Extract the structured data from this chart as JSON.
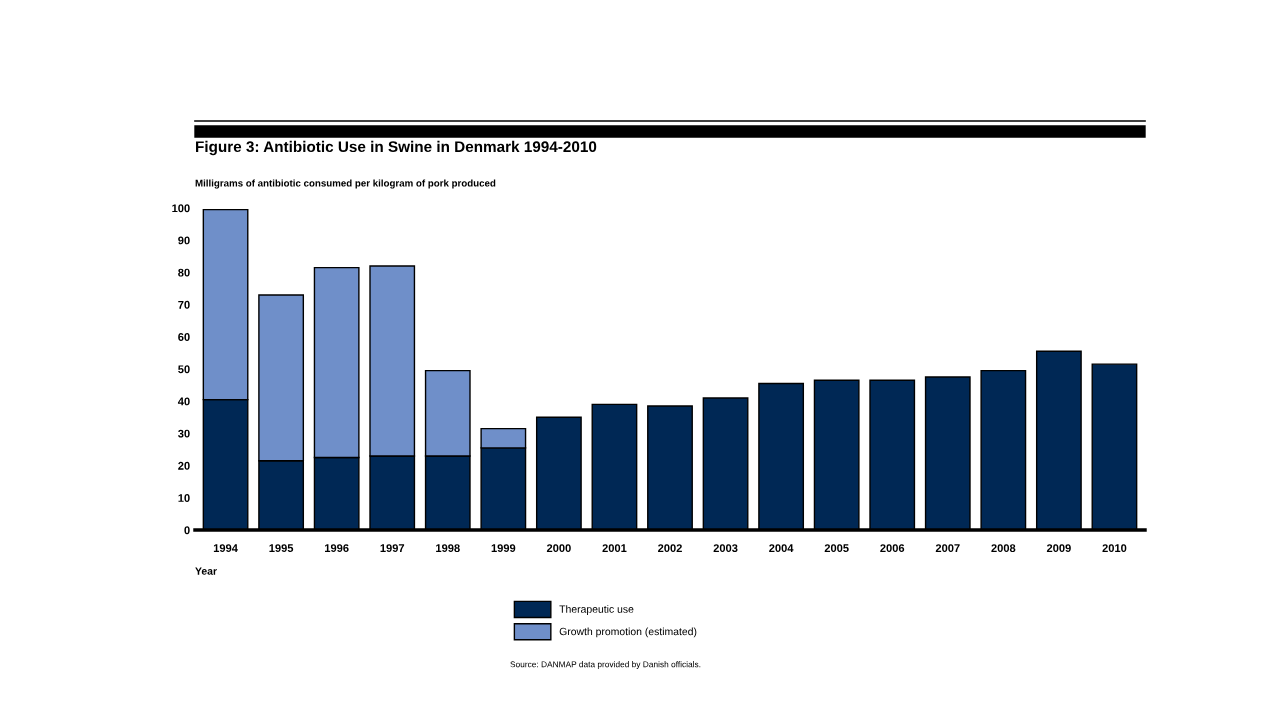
{
  "chart_data": {
    "type": "bar",
    "title": "Figure 3: Antibiotic Use in Swine in Denmark 1994-2010",
    "ylabel": "Milligrams of antibiotic consumed per kilogram of pork produced",
    "xlabel": "Year",
    "categories": [
      "1994",
      "1995",
      "1996",
      "1997",
      "1998",
      "1999",
      "2000",
      "2001",
      "2002",
      "2003",
      "2004",
      "2005",
      "2006",
      "2007",
      "2008",
      "2009",
      "2010"
    ],
    "stacked": true,
    "series": [
      {
        "name": "Therapeutic use",
        "color": "#002855",
        "values": [
          40.5,
          21.5,
          22.5,
          23,
          23,
          25.5,
          35,
          39,
          38.5,
          41,
          45.5,
          46.5,
          46.5,
          47.5,
          49.5,
          55.5,
          51.5
        ]
      },
      {
        "name": "Growth promotion (estimated)",
        "color": "#6f8fc9",
        "values": [
          59,
          51.5,
          59,
          59,
          26.5,
          6,
          null,
          null,
          null,
          null,
          null,
          null,
          null,
          null,
          null,
          null,
          null
        ]
      }
    ],
    "ylim": [
      0,
      100
    ],
    "yticks": [
      0,
      10,
      20,
      30,
      40,
      50,
      60,
      70,
      80,
      90,
      100
    ],
    "grid": false,
    "legend": "bottom",
    "annotations": [
      "Source: DANMAP data provided by Danish officials."
    ]
  }
}
